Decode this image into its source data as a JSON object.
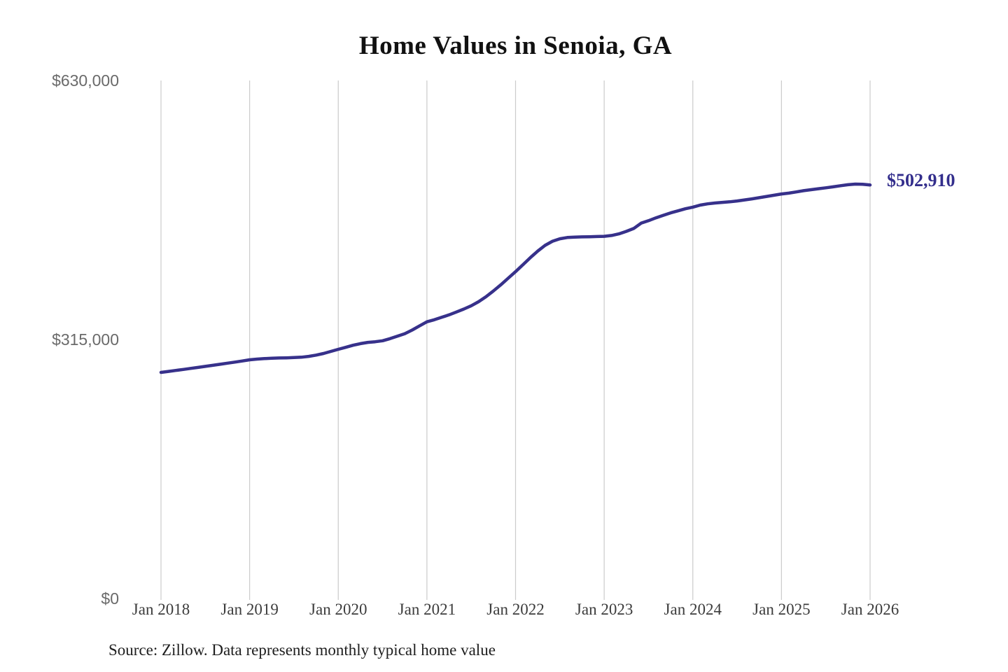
{
  "chart_data": {
    "type": "line",
    "title": "Home Values in Senoia, GA",
    "source_note": "Source: Zillow. Data represents monthly typical home value",
    "end_label": "$502,910",
    "latest_value": 502910,
    "x_start": "Jan 2018",
    "x_end": "Jan 2026",
    "x_frequency": "monthly",
    "x_tick_labels": [
      "Jan 2018",
      "Jan 2019",
      "Jan 2020",
      "Jan 2021",
      "Jan 2022",
      "Jan 2023",
      "Jan 2024",
      "Jan 2025",
      "Jan 2026"
    ],
    "y_ticks": [
      {
        "value": 0,
        "label": "$0"
      },
      {
        "value": 315000,
        "label": "$315,000"
      },
      {
        "value": 630000,
        "label": "$630,000"
      }
    ],
    "ylim": [
      0,
      630000
    ],
    "grid": "vertical-only",
    "legend": "none",
    "colors": {
      "line": "#37318b",
      "end_label": "#332e8c",
      "gridline": "#cbcbcb",
      "title": "#111111",
      "x_tick_text": "#3c3c3c",
      "y_tick_text": "#6a6a6a",
      "source_text": "#1e1e1e",
      "background": "#ffffff"
    },
    "series": [
      {
        "name": "Typical home value (USD)",
        "values": [
          275000,
          276200,
          277400,
          278600,
          279800,
          281000,
          282300,
          283600,
          284900,
          286200,
          287500,
          288900,
          290300,
          291200,
          291800,
          292200,
          292500,
          292700,
          293000,
          293500,
          294500,
          296000,
          298000,
          300500,
          303100,
          305500,
          308000,
          310000,
          311500,
          312300,
          313500,
          316000,
          319000,
          322000,
          326500,
          331500,
          336500,
          339000,
          342000,
          345000,
          348500,
          352000,
          356000,
          361000,
          367000,
          374000,
          381500,
          389500,
          397500,
          406000,
          414500,
          422500,
          429500,
          434500,
          437500,
          439000,
          439500,
          439800,
          440000,
          440200,
          440500,
          441500,
          443500,
          446500,
          450000,
          456500,
          459500,
          463000,
          466000,
          469000,
          471500,
          474000,
          476000,
          478500,
          480000,
          481000,
          481800,
          482500,
          483500,
          484800,
          486000,
          487500,
          489000,
          490500,
          492000,
          493000,
          494500,
          496000,
          497200,
          498400,
          499500,
          500700,
          502000,
          503200,
          504000,
          503800,
          502910
        ]
      }
    ]
  }
}
